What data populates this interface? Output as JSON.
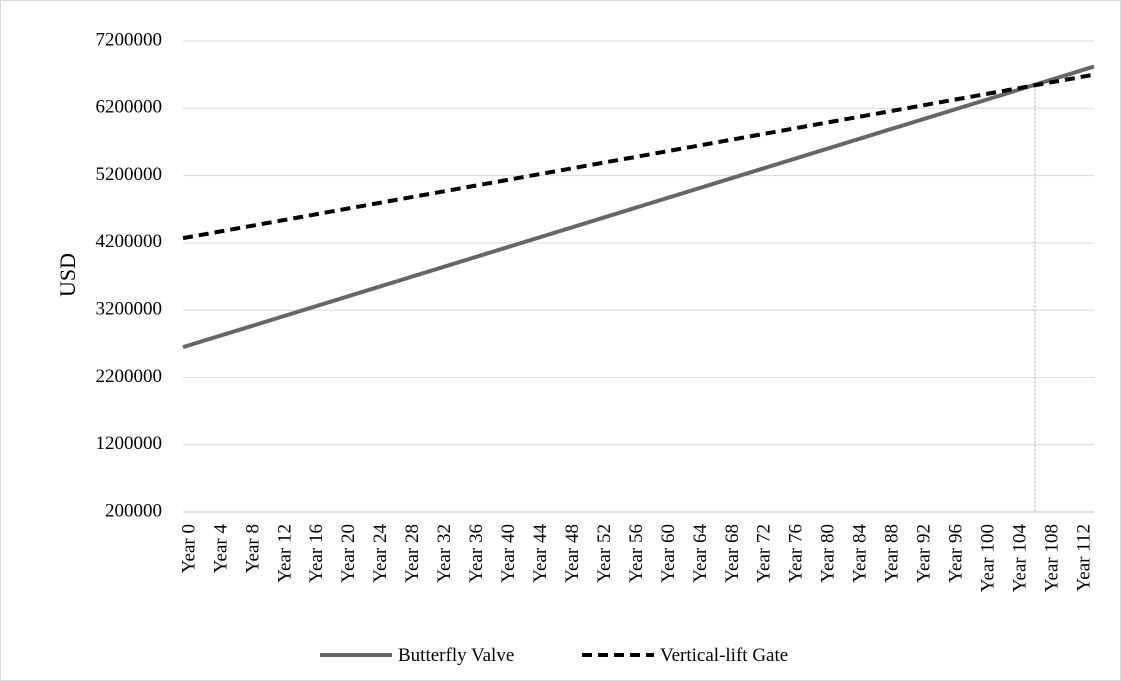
{
  "chart_data": {
    "type": "line",
    "title": "",
    "xlabel": "",
    "ylabel": "USD",
    "ylim": [
      200000,
      7200000
    ],
    "yticks": [
      200000,
      1200000,
      2200000,
      3200000,
      4200000,
      5200000,
      6200000,
      7200000
    ],
    "x_range": [
      0,
      114
    ],
    "x_tick_labels": [
      "Year 0",
      "Year 4",
      "Year 8",
      "Year 12",
      "Year 16",
      "Year 20",
      "Year 24",
      "Year 28",
      "Year 32",
      "Year 36",
      "Year 40",
      "Year 44",
      "Year 48",
      "Year 52",
      "Year 56",
      "Year 60",
      "Year 64",
      "Year 68",
      "Year 72",
      "Year 76",
      "Year 80",
      "Year 84",
      "Year 88",
      "Year 92",
      "Year 96",
      "Year 100",
      "Year 104",
      "Year 108",
      "Year 112"
    ],
    "grid": "horizontal",
    "legend_position": "bottom",
    "series": [
      {
        "name": "Butterfly Valve",
        "style": "solid",
        "color": "#666666",
        "x": [
          0,
          114
        ],
        "y": [
          2650000,
          6820000
        ]
      },
      {
        "name": "Vertical-lift Gate",
        "style": "dashed",
        "color": "#000000",
        "x": [
          0,
          114
        ],
        "y": [
          4270000,
          6700000
        ]
      }
    ],
    "annotations": [
      {
        "type": "vertical-reference-line",
        "x": 106.6,
        "style": "dotted",
        "color": "#a6a6a6"
      }
    ]
  }
}
